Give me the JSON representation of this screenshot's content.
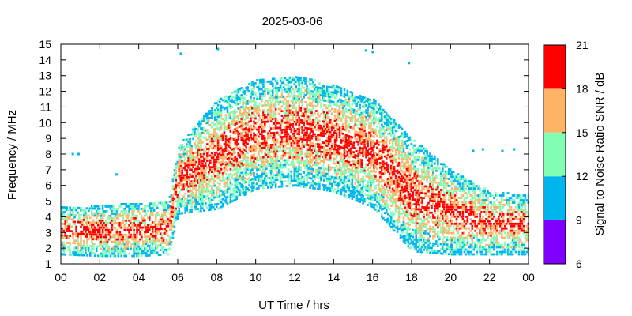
{
  "chart_data": {
    "type": "heatmap",
    "title": "2025-03-06",
    "xlabel": "UT Time / hrs",
    "ylabel": "Frequency / MHz",
    "xlim": [
      0,
      24
    ],
    "ylim": [
      1,
      15
    ],
    "x_ticks": [
      "00",
      "02",
      "04",
      "06",
      "08",
      "10",
      "12",
      "14",
      "16",
      "18",
      "20",
      "22",
      "00"
    ],
    "y_ticks": [
      "1",
      "2",
      "3",
      "4",
      "5",
      "6",
      "7",
      "8",
      "9",
      "10",
      "11",
      "12",
      "13",
      "14",
      "15"
    ],
    "colorbar": {
      "label": "Signal to Noise Ratio SNR / dB",
      "ticks": [
        "6",
        "9",
        "12",
        "15",
        "18",
        "21"
      ],
      "range": [
        6,
        21
      ],
      "bands": [
        {
          "from": 6,
          "to": 9,
          "color": "#8000ff"
        },
        {
          "from": 9,
          "to": 12,
          "color": "#00b4ee"
        },
        {
          "from": 12,
          "to": 15,
          "color": "#80ffb4"
        },
        {
          "from": 15,
          "to": 18,
          "color": "#ffb366"
        },
        {
          "from": 18,
          "to": 21,
          "color": "#ff0000"
        }
      ]
    },
    "envelope": {
      "description_hours": [
        0,
        2,
        4,
        5.5,
        6,
        8,
        10,
        12,
        14,
        16,
        18,
        20,
        22,
        24
      ],
      "fmin_mhz": [
        1.6,
        1.5,
        1.5,
        1.6,
        4.2,
        4.5,
        5.8,
        6.0,
        5.6,
        4.6,
        1.8,
        1.6,
        1.6,
        1.6
      ],
      "fmax_mhz": [
        4.6,
        4.7,
        4.9,
        5.0,
        8.5,
        11.5,
        12.8,
        13.0,
        12.4,
        11.5,
        9.0,
        7.0,
        5.6,
        5.4
      ]
    },
    "outliers": [
      {
        "x": 0.55,
        "y": 8.0,
        "snr": 10
      },
      {
        "x": 0.85,
        "y": 8.0,
        "snr": 10
      },
      {
        "x": 2.8,
        "y": 6.7,
        "snr": 10
      },
      {
        "x": 6.1,
        "y": 14.4,
        "snr": 10
      },
      {
        "x": 8.0,
        "y": 14.7,
        "snr": 10
      },
      {
        "x": 15.6,
        "y": 14.6,
        "snr": 10
      },
      {
        "x": 15.95,
        "y": 14.5,
        "snr": 10
      },
      {
        "x": 17.8,
        "y": 13.8,
        "snr": 10
      },
      {
        "x": 21.1,
        "y": 8.2,
        "snr": 10
      },
      {
        "x": 21.6,
        "y": 8.3,
        "snr": 10
      },
      {
        "x": 22.6,
        "y": 8.2,
        "snr": 10
      },
      {
        "x": 23.2,
        "y": 8.3,
        "snr": 10
      }
    ]
  }
}
